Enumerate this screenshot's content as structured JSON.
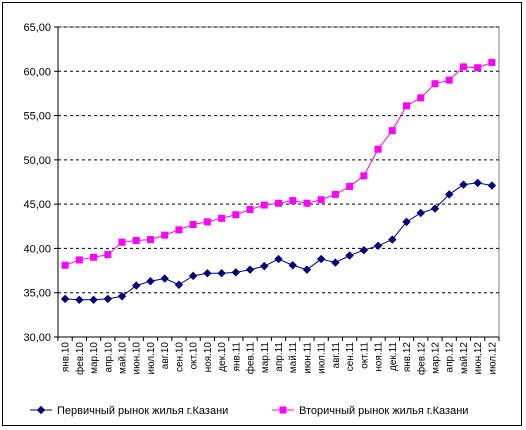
{
  "chart_data": {
    "type": "line",
    "title": "",
    "xlabel": "",
    "ylabel": "",
    "ylim": [
      30,
      65
    ],
    "yticks": [
      "30,00",
      "35,00",
      "40,00",
      "45,00",
      "50,00",
      "55,00",
      "60,00",
      "65,00"
    ],
    "grid": true,
    "legend_position": "bottom",
    "categories": [
      "янв.10",
      "фев.10",
      "мар.10",
      "апр.10",
      "май.10",
      "июн.10",
      "июл.10",
      "авг.10",
      "сен.10",
      "окт.10",
      "ноя.10",
      "дек.10",
      "янв.11",
      "фев.11",
      "мар.11",
      "апр.11",
      "май.11",
      "июн.11",
      "июл.11",
      "авг.11",
      "сен.11",
      "окт.11",
      "ноя.11",
      "дек.11",
      "янв.12",
      "фев.12",
      "мар.12",
      "апр.12",
      "май.12",
      "июн.12",
      "июл.12"
    ],
    "series": [
      {
        "name": "Первичный рынок жилья г.Казани",
        "color": "#000080",
        "marker": "diamond",
        "values": [
          34.3,
          34.2,
          34.2,
          34.3,
          34.6,
          35.8,
          36.3,
          36.6,
          35.9,
          36.9,
          37.2,
          37.2,
          37.3,
          37.6,
          38.0,
          38.8,
          38.1,
          37.6,
          38.8,
          38.4,
          39.2,
          39.8,
          40.3,
          41.0,
          43.0,
          44.0,
          44.5,
          46.1,
          47.2,
          47.4,
          47.1
        ]
      },
      {
        "name": "Вторичный рынок жилья г.Казани",
        "color": "#FF00FF",
        "marker": "square",
        "values": [
          38.1,
          38.7,
          39.0,
          39.3,
          40.7,
          40.9,
          41.0,
          41.5,
          42.1,
          42.7,
          43.0,
          43.4,
          43.8,
          44.4,
          44.9,
          45.1,
          45.4,
          45.1,
          45.5,
          46.1,
          47.0,
          48.2,
          51.2,
          53.3,
          56.1,
          57.0,
          58.6,
          59.0,
          60.5,
          60.4,
          61.0
        ]
      }
    ]
  }
}
